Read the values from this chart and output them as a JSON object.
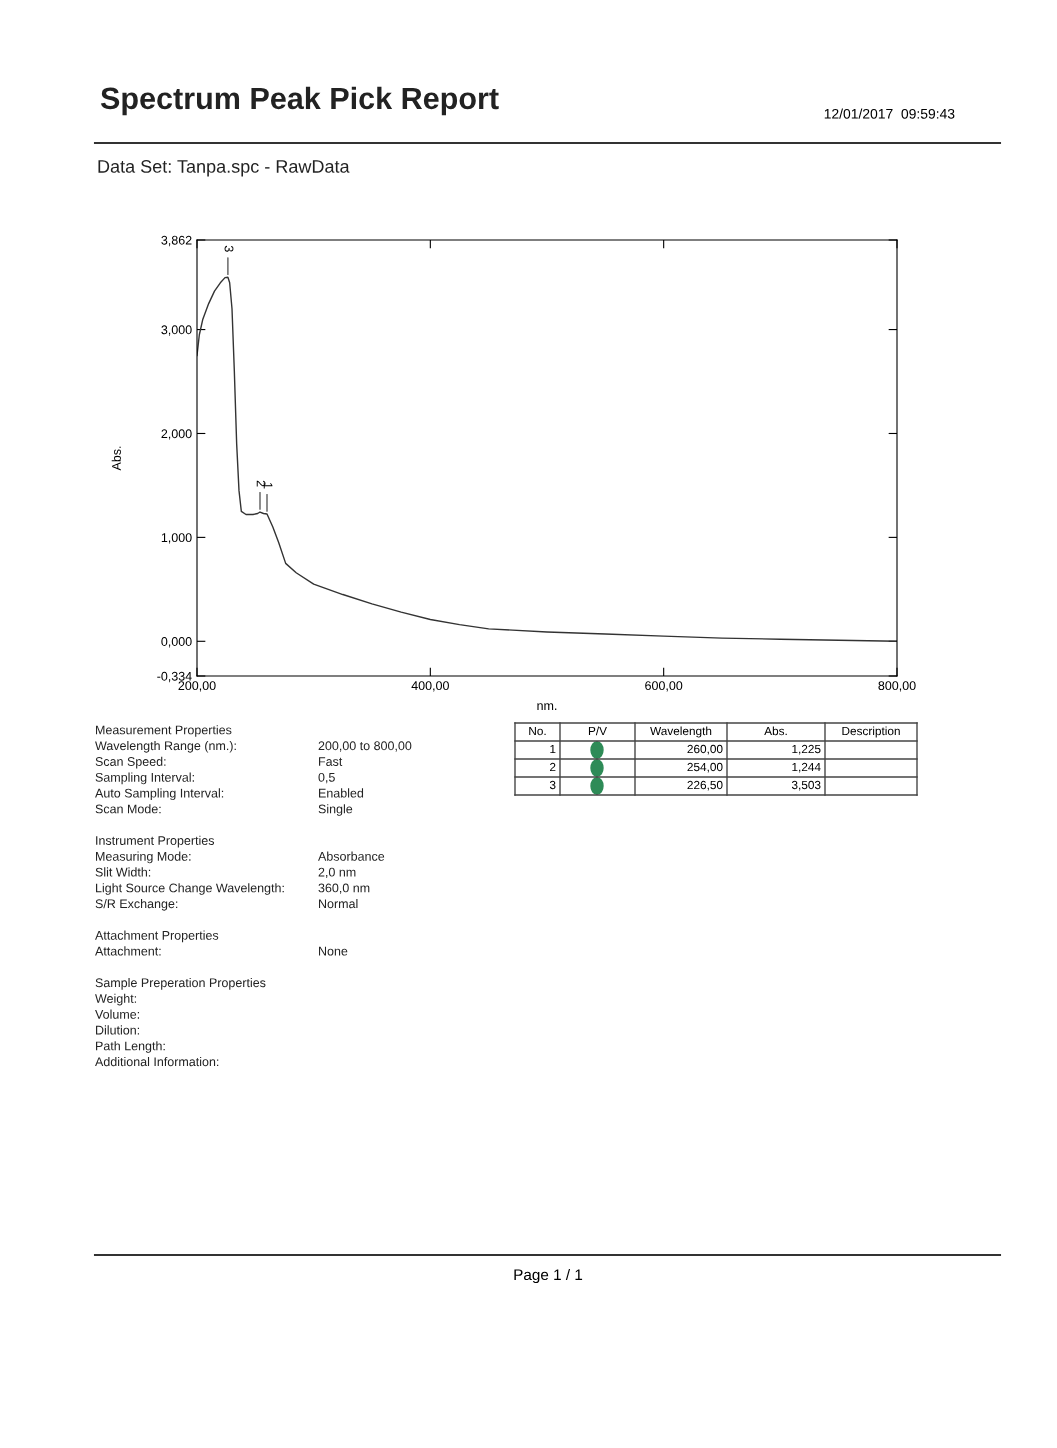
{
  "chart_data": {
    "type": "line",
    "title": "Spectrum Peak Pick Report",
    "subtitle": "Data Set: Tanpa.spc - RawData",
    "xlabel": "nm.",
    "ylabel": "Abs.",
    "xlim": [
      200,
      800
    ],
    "xticks": [
      {
        "value": 200,
        "label": "200,00"
      },
      {
        "value": 400,
        "label": "400,00"
      },
      {
        "value": 600,
        "label": "600,00"
      },
      {
        "value": 800,
        "label": "800,00"
      }
    ],
    "ylim": [
      -0.334,
      3.862
    ],
    "yticks": [
      {
        "value": -0.334,
        "label": "-0,334"
      },
      {
        "value": 0,
        "label": "0,000"
      },
      {
        "value": 1,
        "label": "1,000"
      },
      {
        "value": 2,
        "label": "2,000"
      },
      {
        "value": 3,
        "label": "3,000"
      },
      {
        "value": 3.862,
        "label": "3,862"
      }
    ],
    "grid": false,
    "legend": false,
    "marker": "none",
    "line_style": "solid",
    "series": [
      {
        "color": "#333333",
        "x": [
          200,
          202,
          205,
          210,
          215,
          220,
          224,
          226.5,
          228,
          230,
          232,
          234,
          236,
          238,
          242,
          248,
          252,
          254,
          257,
          260,
          265,
          270,
          276,
          285,
          300,
          325,
          350,
          375,
          400,
          425,
          450,
          500,
          550,
          600,
          650,
          700,
          750,
          800
        ],
        "values": [
          2.75,
          2.95,
          3.1,
          3.25,
          3.37,
          3.45,
          3.5,
          3.503,
          3.45,
          3.2,
          2.6,
          1.9,
          1.45,
          1.25,
          1.22,
          1.22,
          1.23,
          1.244,
          1.23,
          1.225,
          1.1,
          0.95,
          0.75,
          0.66,
          0.55,
          0.45,
          0.36,
          0.28,
          0.21,
          0.16,
          0.12,
          0.09,
          0.07,
          0.05,
          0.03,
          0.02,
          0.01,
          0.0
        ]
      }
    ],
    "annotations": [
      "12/01/2017  09:59:43",
      "Page 1 / 1",
      {
        "text": "1",
        "x": 260,
        "y": 1.225
      },
      {
        "text": "2",
        "x": 254,
        "y": 1.244
      },
      {
        "text": "3",
        "x": 226.5,
        "y": 3.503
      },
      "No.",
      "P/V",
      "Wavelength",
      "Abs.",
      "Description",
      "1",
      "260,00",
      "1,225",
      "2",
      "254,00",
      "1,244",
      "3",
      "226,50",
      "3,503",
      "Measurement Properties",
      "Wavelength Range (nm.):",
      "200,00 to 800,00",
      "Scan Speed:",
      "Fast",
      "Sampling Interval:",
      "0,5",
      "Auto Sampling Interval:",
      "Enabled",
      "Scan Mode:",
      "Single",
      "Instrument Properties",
      "Measuring Mode:",
      "Absorbance",
      "Slit Width:",
      "2,0 nm",
      "Light Source Change Wavelength:",
      "360,0 nm",
      "S/R Exchange:",
      "Normal",
      "Attachment Properties",
      "Attachment:",
      "None",
      "Sample Preperation Properties",
      "Weight:",
      "Volume:",
      "Dilution:",
      "Path Length:",
      "Additional Information:"
    ]
  }
}
